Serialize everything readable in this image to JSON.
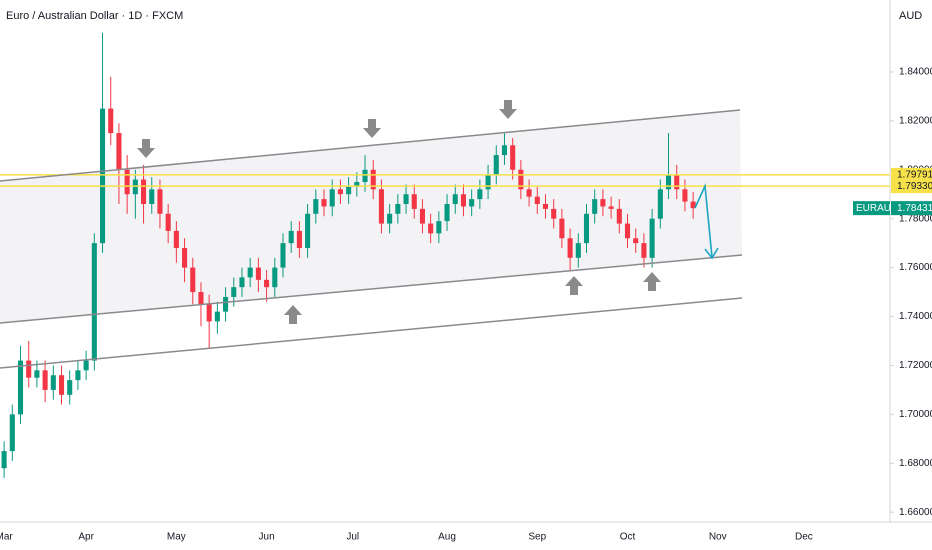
{
  "chart_data": {
    "type": "candlestick",
    "title": "Euro / Australian Dollar · 1D · FXCM",
    "currency": "AUD",
    "symbol": "EURAUD",
    "up_color": "#089981",
    "down_color": "#f23645",
    "grid": false,
    "xlim": [
      -1,
      216
    ],
    "ylim": [
      1.656,
      1.8694
    ],
    "xticks": [
      {
        "value": 0,
        "label": "Mar"
      },
      {
        "value": 20,
        "label": "Apr"
      },
      {
        "value": 42,
        "label": "May"
      },
      {
        "value": 64,
        "label": "Jun"
      },
      {
        "value": 85,
        "label": "Jul"
      },
      {
        "value": 108,
        "label": "Aug"
      },
      {
        "value": 130,
        "label": "Sep"
      },
      {
        "value": 152,
        "label": "Oct"
      },
      {
        "value": 174,
        "label": "Nov"
      },
      {
        "value": 195,
        "label": "Dec"
      }
    ],
    "yticks": [
      {
        "value": 1.84,
        "label": "1.84000"
      },
      {
        "value": 1.82,
        "label": "1.82000"
      },
      {
        "value": 1.8,
        "label": "1.80000"
      },
      {
        "value": 1.78,
        "label": "1.78000"
      },
      {
        "value": 1.76,
        "label": "1.76000"
      },
      {
        "value": 1.74,
        "label": "1.74000"
      },
      {
        "value": 1.72,
        "label": "1.72000"
      },
      {
        "value": 1.7,
        "label": "1.70000"
      },
      {
        "value": 1.68,
        "label": "1.68000"
      },
      {
        "value": 1.66,
        "label": "1.66000"
      }
    ],
    "price_lines": [
      {
        "value": 1.79791,
        "color": "#f7e14a"
      },
      {
        "value": {
          "value": 1.7933,
          "label": "1.79330"
        },
        "color": "#f7e14a"
      }
    ],
    "last_price": {
      "value": 1.78431,
      "color": "#089981"
    },
    "x": [
      0,
      2,
      4,
      6,
      8,
      10,
      12,
      14,
      16,
      18,
      20,
      22,
      24,
      26,
      28,
      30,
      32,
      34,
      36,
      38,
      40,
      42,
      44,
      46,
      48,
      50,
      52,
      54,
      56,
      58,
      60,
      62,
      64,
      66,
      68,
      70,
      72,
      74,
      76,
      78,
      80,
      82,
      84,
      86,
      88,
      90,
      92,
      94,
      96,
      98,
      100,
      102,
      104,
      106,
      108,
      110,
      112,
      114,
      116,
      118,
      120,
      122,
      124,
      126,
      128,
      130,
      132,
      134,
      136,
      138,
      140,
      142,
      144,
      146,
      148,
      150,
      152,
      154,
      156,
      158,
      160,
      162,
      164,
      166,
      168
    ],
    "open": [
      1.678,
      1.685,
      1.7,
      1.722,
      1.715,
      1.718,
      1.71,
      1.716,
      1.708,
      1.714,
      1.718,
      1.722,
      1.77,
      1.825,
      1.815,
      1.8,
      1.79,
      1.796,
      1.786,
      1.792,
      1.782,
      1.775,
      1.768,
      1.76,
      1.75,
      1.745,
      1.738,
      1.742,
      1.748,
      1.752,
      1.756,
      1.76,
      1.755,
      1.752,
      1.76,
      1.77,
      1.775,
      1.768,
      1.782,
      1.788,
      1.785,
      1.792,
      1.79,
      1.793,
      1.795,
      1.8,
      1.792,
      1.778,
      1.782,
      1.786,
      1.79,
      1.784,
      1.778,
      1.774,
      1.779,
      1.786,
      1.79,
      1.785,
      1.788,
      1.792,
      1.798,
      1.806,
      1.81,
      1.8,
      1.792,
      1.789,
      1.786,
      1.784,
      1.78,
      1.772,
      1.764,
      1.77,
      1.782,
      1.788,
      1.785,
      1.784,
      1.778,
      1.772,
      1.77,
      1.764,
      1.78,
      1.792,
      1.798,
      1.792,
      1.787
    ],
    "high": [
      1.689,
      1.704,
      1.728,
      1.73,
      1.722,
      1.722,
      1.72,
      1.72,
      1.718,
      1.722,
      1.726,
      1.774,
      1.856,
      1.838,
      1.819,
      1.806,
      1.8,
      1.802,
      1.797,
      1.796,
      1.786,
      1.779,
      1.772,
      1.764,
      1.754,
      1.749,
      1.746,
      1.752,
      1.756,
      1.76,
      1.764,
      1.764,
      1.759,
      1.764,
      1.774,
      1.779,
      1.779,
      1.786,
      1.792,
      1.792,
      1.796,
      1.796,
      1.797,
      1.799,
      1.806,
      1.804,
      1.796,
      1.786,
      1.79,
      1.794,
      1.794,
      1.788,
      1.782,
      1.783,
      1.79,
      1.794,
      1.794,
      1.792,
      1.796,
      1.802,
      1.81,
      1.815,
      1.813,
      1.804,
      1.796,
      1.793,
      1.79,
      1.788,
      1.784,
      1.776,
      1.774,
      1.786,
      1.792,
      1.792,
      1.789,
      1.788,
      1.782,
      1.776,
      1.774,
      1.784,
      1.796,
      1.815,
      1.802,
      1.796,
      1.791
    ],
    "low": [
      1.674,
      1.681,
      1.696,
      1.711,
      1.711,
      1.705,
      1.706,
      1.704,
      1.704,
      1.71,
      1.714,
      1.718,
      1.766,
      1.81,
      1.786,
      1.782,
      1.78,
      1.778,
      1.782,
      1.776,
      1.77,
      1.762,
      1.754,
      1.745,
      1.736,
      1.727,
      1.733,
      1.738,
      1.744,
      1.748,
      1.752,
      1.75,
      1.746,
      1.748,
      1.756,
      1.766,
      1.764,
      1.764,
      1.778,
      1.781,
      1.781,
      1.786,
      1.786,
      1.789,
      1.791,
      1.788,
      1.774,
      1.774,
      1.778,
      1.782,
      1.78,
      1.774,
      1.77,
      1.77,
      1.775,
      1.782,
      1.781,
      1.781,
      1.784,
      1.788,
      1.794,
      1.802,
      1.796,
      1.788,
      1.785,
      1.782,
      1.78,
      1.776,
      1.768,
      1.759,
      1.76,
      1.766,
      1.778,
      1.781,
      1.78,
      1.774,
      1.768,
      1.766,
      1.76,
      1.76,
      1.776,
      1.788,
      1.788,
      1.783,
      1.78
    ],
    "close": [
      1.685,
      1.7,
      1.722,
      1.715,
      1.718,
      1.71,
      1.716,
      1.708,
      1.714,
      1.718,
      1.722,
      1.77,
      1.825,
      1.815,
      1.8,
      1.79,
      1.796,
      1.786,
      1.792,
      1.782,
      1.775,
      1.768,
      1.76,
      1.75,
      1.745,
      1.738,
      1.742,
      1.748,
      1.752,
      1.756,
      1.76,
      1.755,
      1.752,
      1.76,
      1.77,
      1.775,
      1.768,
      1.782,
      1.788,
      1.785,
      1.792,
      1.79,
      1.793,
      1.795,
      1.8,
      1.792,
      1.778,
      1.782,
      1.786,
      1.79,
      1.784,
      1.778,
      1.774,
      1.779,
      1.786,
      1.79,
      1.785,
      1.788,
      1.792,
      1.798,
      1.806,
      1.81,
      1.8,
      1.792,
      1.789,
      1.786,
      1.784,
      1.78,
      1.772,
      1.764,
      1.77,
      1.782,
      1.788,
      1.785,
      1.784,
      1.778,
      1.772,
      1.77,
      1.764,
      1.78,
      1.792,
      1.798,
      1.792,
      1.787,
      1.7843
    ]
  }
}
